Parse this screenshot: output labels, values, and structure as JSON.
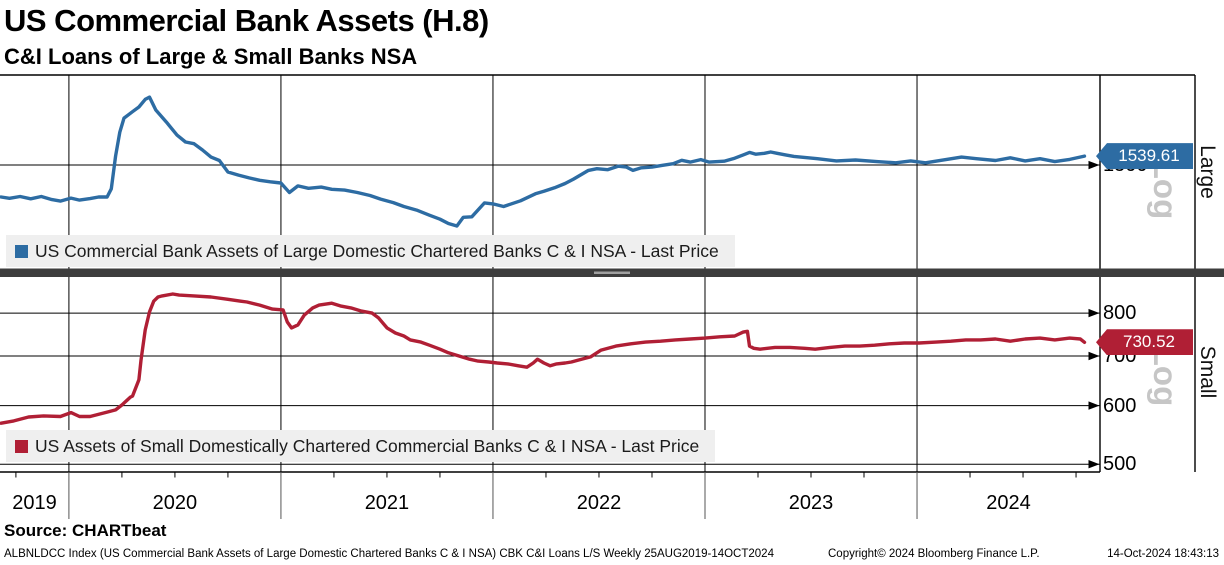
{
  "source": "Source: CHARTbeat",
  "footer": {
    "left": "ALBNLDCC Index (US Commercial Bank Assets of Large Domestic Chartered Banks C & I NSA) CBK C&I Loans L/S  Weekly 25AUG2019-14OCT2024",
    "center": "Copyright© 2024 Bloomberg Finance L.P.",
    "right": "14-Oct-2024 18:43:13"
  },
  "colors": {
    "large_line": "#2d6ca3",
    "small_line": "#b01f35",
    "separator_bar": "#3d3d3d",
    "splitter_handle": "#a0a0a0",
    "legend_bg": "#efefef",
    "log_label": "#c6c6c6",
    "gridline": "#000000"
  },
  "chart_data": {
    "type": "line",
    "title": "US Commercial Bank Assets (H.8)",
    "subtitle": "C&I Loans of Large & Small Banks NSA",
    "x_axis": {
      "label_years": [
        "2019",
        "2020",
        "2021",
        "2022",
        "2023",
        "2024"
      ],
      "gridline_years": [
        2020,
        2021,
        2022,
        2023,
        2024
      ],
      "domain": [
        2019.675,
        2024.863
      ],
      "frequency": "Weekly",
      "range": "25AUG2019-14OCT2024",
      "minor_tick_step_years": 0.25
    },
    "panels": [
      {
        "id": "large",
        "panel_label": "Large",
        "scale": "Log",
        "legend": "US Commercial Bank Assets of Large Domestic Chartered Banks C & I NSA - Last Price",
        "last_price": 1539.61,
        "last_price_label": "1539.61",
        "color": "#2d6ca3",
        "ylim": [
          1111,
          1948
        ],
        "ticks": [
          1500
        ],
        "series": {
          "t": [
            2019.68,
            2019.72,
            2019.77,
            2019.82,
            2019.87,
            2019.92,
            2019.96,
            2020.01,
            2020.05,
            2020.1,
            2020.14,
            2020.18,
            2020.2,
            2020.22,
            2020.24,
            2020.26,
            2020.3,
            2020.33,
            2020.36,
            2020.38,
            2020.41,
            2020.46,
            2020.51,
            2020.55,
            2020.59,
            2020.63,
            2020.67,
            2020.71,
            2020.75,
            2020.8,
            2020.85,
            2020.9,
            2020.95,
            2021,
            2021.04,
            2021.08,
            2021.13,
            2021.19,
            2021.24,
            2021.3,
            2021.36,
            2021.42,
            2021.47,
            2021.53,
            2021.58,
            2021.64,
            2021.7,
            2021.75,
            2021.79,
            2021.83,
            2021.86,
            2021.9,
            2021.96,
            2022,
            2022.05,
            2022.13,
            2022.2,
            2022.24,
            2022.29,
            2022.34,
            2022.38,
            2022.45,
            2022.49,
            2022.54,
            2022.59,
            2022.63,
            2022.66,
            2022.7,
            2022.75,
            2022.8,
            2022.85,
            2022.89,
            2022.93,
            2022.98,
            2023.02,
            2023.09,
            2023.14,
            2023.18,
            2023.21,
            2023.24,
            2023.28,
            2023.31,
            2023.34,
            2023.38,
            2023.42,
            2023.53,
            2023.62,
            2023.71,
            2023.81,
            2023.9,
            2023.97,
            2024.04,
            2024.14,
            2024.21,
            2024.28,
            2024.37,
            2024.44,
            2024.51,
            2024.58,
            2024.65,
            2024.72,
            2024.79
          ],
          "v": [
            1367,
            1362,
            1369,
            1360,
            1369,
            1357,
            1351,
            1363,
            1355,
            1361,
            1367,
            1367,
            1400,
            1540,
            1650,
            1719,
            1751,
            1775,
            1815,
            1827,
            1760,
            1699,
            1636,
            1604,
            1596,
            1567,
            1535,
            1520,
            1470,
            1457,
            1445,
            1435,
            1429,
            1424,
            1385,
            1412,
            1402,
            1407,
            1398,
            1395,
            1385,
            1373,
            1359,
            1345,
            1330,
            1316,
            1297,
            1282,
            1266,
            1257,
            1289,
            1291,
            1344,
            1340,
            1330,
            1352,
            1380,
            1390,
            1404,
            1422,
            1440,
            1477,
            1484,
            1480,
            1495,
            1491,
            1477,
            1488,
            1491,
            1499,
            1506,
            1521,
            1513,
            1524,
            1513,
            1517,
            1530,
            1545,
            1556,
            1548,
            1552,
            1558,
            1552,
            1545,
            1538,
            1528,
            1518,
            1522,
            1515,
            1510,
            1518,
            1510,
            1525,
            1535,
            1528,
            1520,
            1532,
            1518,
            1528,
            1515,
            1525,
            1539.61
          ]
        }
      },
      {
        "id": "small",
        "panel_label": "Small",
        "scale": "Log",
        "legend": "US Assets of Small Domestically Chartered Commercial Banks C & I NSA - Last Price",
        "last_price": 730.52,
        "last_price_label": "730.52",
        "color": "#b01f35",
        "ylim": [
          488,
          895
        ],
        "ticks": [
          800,
          700,
          600,
          500
        ],
        "series": {
          "t": [
            2019.68,
            2019.74,
            2019.81,
            2019.88,
            2019.96,
            2020.01,
            2020.05,
            2020.1,
            2020.18,
            2020.22,
            2020.25,
            2020.29,
            2020.3,
            2020.33,
            2020.34,
            2020.36,
            2020.38,
            2020.4,
            2020.42,
            2020.44,
            2020.49,
            2020.52,
            2020.59,
            2020.67,
            2020.75,
            2020.81,
            2020.84,
            2020.9,
            2020.96,
            2021.01,
            2021.03,
            2021.05,
            2021.08,
            2021.11,
            2021.15,
            2021.18,
            2021.24,
            2021.28,
            2021.33,
            2021.38,
            2021.43,
            2021.46,
            2021.5,
            2021.54,
            2021.58,
            2021.61,
            2021.66,
            2021.7,
            2021.75,
            2021.79,
            2021.84,
            2021.89,
            2021.93,
            2021.98,
            2022.02,
            2022.07,
            2022.12,
            2022.16,
            2022.19,
            2022.21,
            2022.24,
            2022.27,
            2022.3,
            2022.34,
            2022.37,
            2022.4,
            2022.46,
            2022.51,
            2022.58,
            2022.65,
            2022.72,
            2022.79,
            2022.86,
            2022.93,
            2023,
            2023.07,
            2023.14,
            2023.18,
            2023.2,
            2023.21,
            2023.23,
            2023.26,
            2023.33,
            2023.4,
            2023.47,
            2023.52,
            2023.59,
            2023.66,
            2023.73,
            2023.8,
            2023.87,
            2023.94,
            2024.01,
            2024.09,
            2024.16,
            2024.23,
            2024.3,
            2024.37,
            2024.44,
            2024.51,
            2024.58,
            2024.65,
            2024.72,
            2024.77,
            2024.79
          ],
          "v": [
            568,
            572,
            579,
            581,
            580,
            587,
            580,
            580,
            588,
            592,
            601,
            616,
            618,
            650,
            691,
            759,
            803,
            830,
            841,
            844,
            849,
            846,
            844,
            841,
            835,
            830,
            828,
            820,
            810,
            808,
            778,
            764,
            771,
            795,
            813,
            820,
            825,
            818,
            813,
            805,
            800,
            788,
            764,
            752,
            745,
            736,
            731,
            724,
            715,
            707,
            700,
            693,
            689,
            687,
            685,
            683,
            679,
            676,
            685,
            693,
            685,
            679,
            683,
            685,
            687,
            691,
            698,
            713,
            722,
            727,
            731,
            733,
            736,
            738,
            740,
            743,
            745,
            754,
            756,
            722,
            717,
            715,
            719,
            719,
            717,
            715,
            719,
            722,
            722,
            724,
            727,
            729,
            729,
            731,
            733,
            736,
            736,
            738,
            733,
            738,
            740,
            736,
            740,
            738,
            730.52
          ]
        }
      }
    ]
  }
}
